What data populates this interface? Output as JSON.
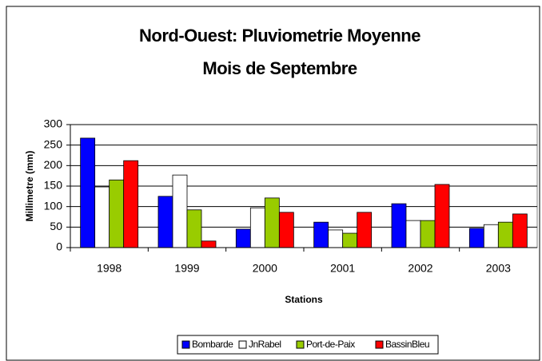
{
  "chart_data": {
    "type": "bar",
    "title": "Nord-Ouest: Pluviometrie Moyenne",
    "subtitle": "Mois de Septembre",
    "y_label": "Millimetre (mm)",
    "x_label": "Stations",
    "categories": [
      "1998",
      "1999",
      "2000",
      "2001",
      "2002",
      "2003"
    ],
    "series": [
      {
        "name": "Bombarde",
        "color": "#0000ff",
        "values": [
          267,
          125,
          45,
          62,
          107,
          47
        ]
      },
      {
        "name": "JnRabel",
        "color": "#ffffff",
        "values": [
          148,
          177,
          97,
          43,
          66,
          56
        ]
      },
      {
        "name": "Port-de-Paix",
        "color": "#99cc00",
        "values": [
          165,
          92,
          121,
          35,
          66,
          62
        ]
      },
      {
        "name": "BassinBleu",
        "color": "#ff0000",
        "values": [
          212,
          16,
          86,
          86,
          154,
          82
        ]
      }
    ],
    "ylim": [
      0,
      300
    ],
    "yticks": [
      0,
      50,
      100,
      150,
      200,
      250,
      300
    ],
    "grid": true,
    "legend": "bottom"
  }
}
